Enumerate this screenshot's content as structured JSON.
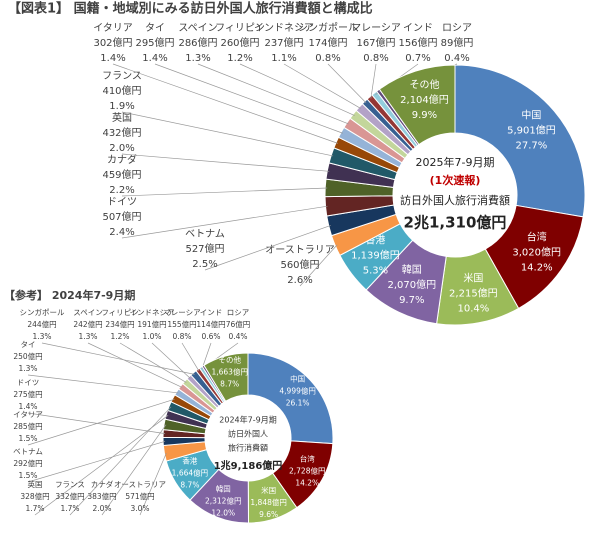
{
  "chart_data": [
    {
      "type": "pie",
      "title": "【図表1】 国籍・地域別にみる訪日外国人旅行消費額と構成比",
      "categories": [
        "中国",
        "台湾",
        "米国",
        "韓国",
        "香港",
        "オーストラリア",
        "ベトナム",
        "ドイツ",
        "カナダ",
        "英国",
        "フランス",
        "イタリア",
        "タイ",
        "スペイン",
        "フィリピン",
        "インドネシア",
        "シンガポール",
        "マレーシア",
        "インド",
        "ロシア",
        "その他"
      ],
      "values": [
        5901,
        3020,
        2215,
        2070,
        1139,
        560,
        527,
        507,
        459,
        432,
        410,
        302,
        295,
        286,
        260,
        237,
        174,
        167,
        156,
        89,
        2104
      ],
      "value_labels": [
        "5,901億円",
        "3,020億円",
        "2,215億円",
        "2,070億円",
        "1,139億円",
        "560億円",
        "527億円",
        "507億円",
        "459億円",
        "432億円",
        "410億円",
        "302億円",
        "295億円",
        "286億円",
        "260億円",
        "237億円",
        "174億円",
        "167億円",
        "156億円",
        "89億円",
        "2,104億円"
      ],
      "percents": [
        27.7,
        14.2,
        10.4,
        9.7,
        5.3,
        2.6,
        2.5,
        2.4,
        2.2,
        2.0,
        1.9,
        1.4,
        1.4,
        1.3,
        1.2,
        1.1,
        0.8,
        0.8,
        0.7,
        0.4,
        9.9
      ],
      "percent_labels": [
        "27.7%",
        "14.2%",
        "10.4%",
        "9.7%",
        "5.3%",
        "2.6%",
        "2.5%",
        "2.4%",
        "2.2%",
        "2.0%",
        "1.9%",
        "1.4%",
        "1.4%",
        "1.3%",
        "1.2%",
        "1.1%",
        "0.8%",
        "0.8%",
        "0.7%",
        "0.4%",
        "9.9%"
      ],
      "colors": [
        "#4f81bd",
        "#7f0000",
        "#9bbb59",
        "#8064a2",
        "#4bacc6",
        "#f79646",
        "#17375e",
        "#632523",
        "#4f6228",
        "#403152",
        "#215968",
        "#984807",
        "#95b3d7",
        "#d99694",
        "#c3d69b",
        "#b3a2c7",
        "#376092",
        "#953735",
        "#93cddd",
        "#604a7b",
        "#76923c"
      ],
      "center_text": [
        "2025年7-9月期",
        "(1次速報)",
        "訪日外国人旅行消費額",
        "2兆1,310億円"
      ]
    },
    {
      "type": "pie",
      "title": "【参考】 2024年7-9月期",
      "categories": [
        "中国",
        "台湾",
        "米国",
        "韓国",
        "香港",
        "オーストラリア",
        "ベトナム",
        "ドイツ",
        "カナダ",
        "英国",
        "フランス",
        "イタリア",
        "タイ",
        "スペイン",
        "フィリピン",
        "インドネシア",
        "シンガポール",
        "マレーシア",
        "インド",
        "ロシア",
        "その他"
      ],
      "values": [
        4999,
        2728,
        1848,
        2312,
        1664,
        571,
        292,
        275,
        383,
        328,
        332,
        285,
        250,
        242,
        234,
        191,
        244,
        155,
        114,
        76,
        1663
      ],
      "value_labels": [
        "4,999億円",
        "2,728億円",
        "1,848億円",
        "2,312億円",
        "1,664億円",
        "571億円",
        "292億円",
        "275億円",
        "383億円",
        "328億円",
        "332億円",
        "285億円",
        "250億円",
        "242億円",
        "234億円",
        "191億円",
        "244億円",
        "155億円",
        "114億円",
        "76億円",
        "1,663億円"
      ],
      "percents": [
        26.1,
        14.2,
        9.6,
        12.0,
        8.7,
        3.0,
        1.5,
        1.4,
        2.0,
        1.7,
        1.7,
        1.5,
        1.3,
        1.3,
        1.2,
        1.0,
        1.3,
        0.8,
        0.6,
        0.4,
        8.7
      ],
      "percent_labels": [
        "26.1%",
        "14.2%",
        "9.6%",
        "12.0%",
        "8.7%",
        "3.0%",
        "1.5%",
        "1.4%",
        "2.0%",
        "1.7%",
        "1.7%",
        "1.5%",
        "1.3%",
        "1.3%",
        "1.2%",
        "1.0%",
        "1.3%",
        "0.8%",
        "0.6%",
        "0.4%",
        "8.7%"
      ],
      "colors": [
        "#4f81bd",
        "#7f0000",
        "#9bbb59",
        "#8064a2",
        "#4bacc6",
        "#f79646",
        "#17375e",
        "#632523",
        "#4f6228",
        "#403152",
        "#215968",
        "#984807",
        "#95b3d7",
        "#d99694",
        "#c3d69b",
        "#b3a2c7",
        "#376092",
        "#953735",
        "#93cddd",
        "#604a7b",
        "#76923c"
      ],
      "center_text": [
        "2024年7-9月期",
        "訪日外国人",
        "旅行消費額",
        "1兆9,186億円"
      ]
    }
  ]
}
